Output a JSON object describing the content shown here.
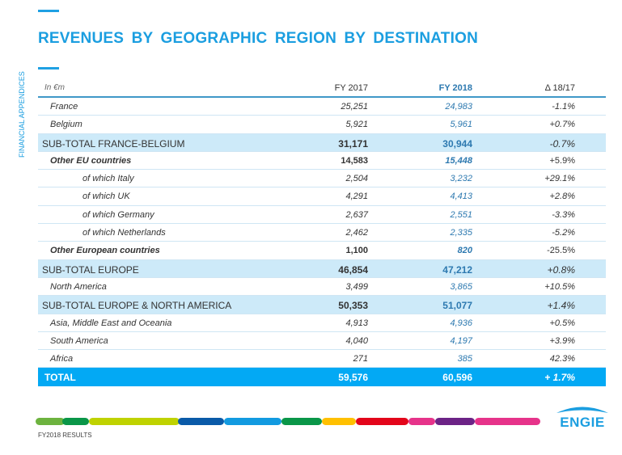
{
  "title": "REVENUES  BY GEOGRAPHIC  REGION BY DESTINATION",
  "side_label": "FINANCIAL APPENDICES",
  "table": {
    "headers": [
      "In €m",
      "FY 2017",
      "FY 2018",
      "Δ 18/17"
    ],
    "rows": [
      {
        "label": "France",
        "fy2017": "25,251",
        "fy2018": "24,983",
        "delta": "-1.1%",
        "style": "normal"
      },
      {
        "label": "Belgium",
        "fy2017": "5,921",
        "fy2018": "5,961",
        "delta": "+0.7%",
        "style": "normal"
      },
      {
        "label": "SUB-TOTAL FRANCE-BELGIUM",
        "fy2017": "31,171",
        "fy2018": "30,944",
        "delta": "-0.7%",
        "style": "subtotal"
      },
      {
        "label": "Other EU countries",
        "fy2017": "14,583",
        "fy2018": "15,448",
        "delta": "+5.9%",
        "style": "bold"
      },
      {
        "label": "of which Italy",
        "fy2017": "2,504",
        "fy2018": "3,232",
        "delta": "+29.1%",
        "style": "indent"
      },
      {
        "label": "of which UK",
        "fy2017": "4,291",
        "fy2018": "4,413",
        "delta": "+2.8%",
        "style": "indent"
      },
      {
        "label": "of which Germany",
        "fy2017": "2,637",
        "fy2018": "2,551",
        "delta": "-3.3%",
        "style": "indent"
      },
      {
        "label": "of which Netherlands",
        "fy2017": "2,462",
        "fy2018": "2,335",
        "delta": "-5.2%",
        "style": "indent"
      },
      {
        "label": "Other European countries",
        "fy2017": "1,100",
        "fy2018": "820",
        "delta": "-25.5%",
        "style": "bold"
      },
      {
        "label": "SUB-TOTAL EUROPE",
        "fy2017": "46,854",
        "fy2018": "47,212",
        "delta": "+0.8%",
        "style": "subtotal"
      },
      {
        "label": "North America",
        "fy2017": "3,499",
        "fy2018": "3,865",
        "delta": "+10.5%",
        "style": "normal"
      },
      {
        "label": "SUB-TOTAL EUROPE & NORTH AMERICA",
        "fy2017": "50,353",
        "fy2018": "51,077",
        "delta": "+1.4%",
        "style": "subtotal"
      },
      {
        "label": "Asia, Middle East and Oceania",
        "fy2017": "4,913",
        "fy2018": "4,936",
        "delta": "+0.5%",
        "style": "normal"
      },
      {
        "label": "South America",
        "fy2017": "4,040",
        "fy2018": "4,197",
        "delta": "+3.9%",
        "style": "normal"
      },
      {
        "label": "Africa",
        "fy2017": "271",
        "fy2018": "385",
        "delta": "42.3%",
        "style": "normal"
      },
      {
        "label": "TOTAL",
        "fy2017": "59,576",
        "fy2018": "60,596",
        "delta": "+ 1.7%",
        "style": "total"
      }
    ]
  },
  "footer": "FY2018 RESULTS",
  "logo_text": "engie",
  "colors": {
    "accent": "#1b9ee0",
    "total_bg": "#03a9f4",
    "subtotal_bg": "#cdeaf9"
  }
}
